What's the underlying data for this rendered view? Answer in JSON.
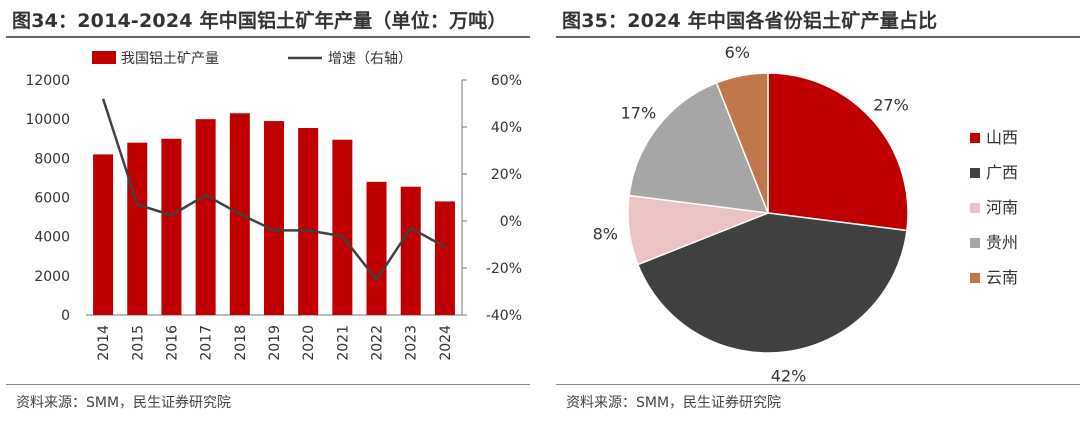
{
  "left": {
    "title": "图34：2014-2024 年中国铝土矿年产量（单位：万吨）",
    "source": "资料来源：SMM，民生证券研究院"
  },
  "right": {
    "title": "图35：2024 年中国各省份铝土矿产量占比",
    "source": "资料来源：SMM，民生证券研究院"
  },
  "colors": {
    "bar": "#c00000",
    "line": "#404040"
  },
  "chart_data": [
    {
      "type": "bar",
      "categories": [
        "2014",
        "2015",
        "2016",
        "2017",
        "2018",
        "2019",
        "2020",
        "2021",
        "2022",
        "2023",
        "2024"
      ],
      "series": [
        {
          "name": "我国铝土矿产量",
          "kind": "bar",
          "axis": "left",
          "values": [
            8200,
            8800,
            9000,
            10000,
            10300,
            9900,
            9550,
            8950,
            6800,
            6550,
            5800
          ]
        },
        {
          "name": "增速（右轴）",
          "kind": "line",
          "axis": "right",
          "values": [
            52,
            7,
            2.5,
            11,
            3,
            -4,
            -4,
            -6.5,
            -25,
            -3,
            -11
          ]
        }
      ],
      "yticks_left": [
        "0",
        "2000",
        "4000",
        "6000",
        "8000",
        "10000",
        "12000"
      ],
      "ylim_left": [
        0,
        12000
      ],
      "yticks_right": [
        "-40%",
        "-20%",
        "0%",
        "20%",
        "40%",
        "60%"
      ],
      "ylim_right": [
        -40,
        60
      ],
      "legend_position": "top"
    },
    {
      "type": "pie",
      "slices": [
        {
          "label": "山西",
          "value": 27,
          "value_label": "27%",
          "color": "#c00000"
        },
        {
          "label": "广西",
          "value": 42,
          "value_label": "42%",
          "color": "#404040"
        },
        {
          "label": "河南",
          "value": 8,
          "value_label": "8%",
          "color": "#ecc2c2"
        },
        {
          "label": "贵州",
          "value": 17,
          "value_label": "17%",
          "color": "#a6a6a6"
        },
        {
          "label": "云南",
          "value": 6,
          "value_label": "6%",
          "color": "#c0784a"
        }
      ],
      "legend_position": "right"
    }
  ]
}
